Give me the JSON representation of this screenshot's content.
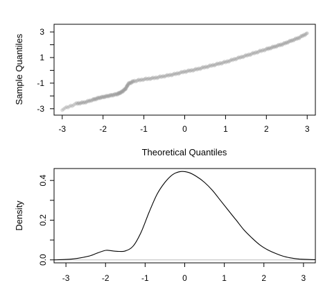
{
  "chart_data": [
    {
      "type": "scatter",
      "title": "",
      "xlabel": "Theoretical Quantiles",
      "ylabel": "Sample Quantiles",
      "xlim": [
        -3.2,
        3.2
      ],
      "ylim": [
        -3.5,
        3.6
      ],
      "xticks": [
        "-3",
        "-2",
        "-1",
        "0",
        "1",
        "2",
        "3"
      ],
      "yticks": [
        "-3",
        "-1",
        "1",
        "3"
      ],
      "yticks_minor": [
        -2,
        0,
        2
      ],
      "grid": false,
      "series": [
        {
          "color": "#9a9a9a",
          "x": [
            -3.0,
            -2.65,
            -2.45,
            -2.25,
            -2.1,
            -1.95,
            -1.8,
            -1.65,
            -1.55,
            -1.45,
            -1.38,
            -1.25,
            -1.0,
            -0.75,
            -0.5,
            -0.25,
            0.0,
            0.25,
            0.5,
            0.75,
            1.0,
            1.25,
            1.5,
            1.75,
            2.0,
            2.2,
            2.4,
            2.6,
            2.8,
            3.0
          ],
          "y": [
            -3.05,
            -2.6,
            -2.5,
            -2.3,
            -2.15,
            -2.05,
            -1.95,
            -1.85,
            -1.7,
            -1.45,
            -1.05,
            -0.85,
            -0.7,
            -0.6,
            -0.45,
            -0.3,
            -0.1,
            0.05,
            0.25,
            0.45,
            0.65,
            0.9,
            1.15,
            1.4,
            1.65,
            1.85,
            2.05,
            2.3,
            2.55,
            2.9
          ]
        }
      ]
    },
    {
      "type": "line",
      "title": "",
      "xlabel": "",
      "ylabel": "Density",
      "xlim": [
        -3.3,
        3.3
      ],
      "ylim": [
        -0.015,
        0.46
      ],
      "xticks": [
        "-3",
        "-2",
        "-1",
        "0",
        "1",
        "2",
        "3"
      ],
      "yticks": [
        "0.0",
        "0.2",
        "0.4"
      ],
      "yticks_minor": [
        0.1,
        0.3
      ],
      "grid": false,
      "baseline_color": "#bbbbbb",
      "series": [
        {
          "color": "#000000",
          "x": [
            -3.3,
            -3.0,
            -2.7,
            -2.4,
            -2.2,
            -2.0,
            -1.9,
            -1.7,
            -1.5,
            -1.3,
            -1.1,
            -0.9,
            -0.7,
            -0.5,
            -0.3,
            -0.1,
            0.1,
            0.3,
            0.5,
            0.7,
            0.9,
            1.1,
            1.3,
            1.5,
            1.7,
            1.9,
            2.1,
            2.3,
            2.5,
            2.7,
            2.9,
            3.1,
            3.3
          ],
          "y": [
            0.0,
            0.002,
            0.008,
            0.02,
            0.035,
            0.048,
            0.047,
            0.043,
            0.045,
            0.07,
            0.14,
            0.24,
            0.33,
            0.39,
            0.43,
            0.445,
            0.44,
            0.42,
            0.39,
            0.35,
            0.3,
            0.25,
            0.2,
            0.15,
            0.11,
            0.075,
            0.05,
            0.032,
            0.018,
            0.009,
            0.004,
            0.002,
            0.001
          ]
        }
      ]
    }
  ]
}
